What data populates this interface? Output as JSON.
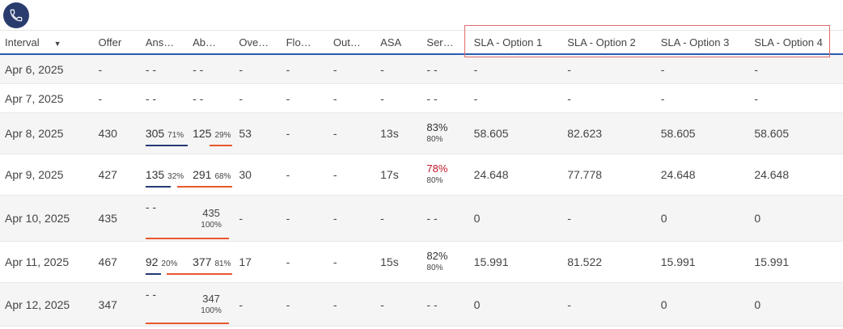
{
  "columns": {
    "interval": "Interval",
    "offer": "Offer",
    "answered": "Ans…",
    "abandoned": "Ab…",
    "over": "Ove…",
    "flow": "Flo…",
    "out": "Out…",
    "asa": "ASA",
    "service": "Ser…",
    "sla1": "SLA - Option 1",
    "sla2": "SLA - Option 2",
    "sla3": "SLA - Option 3",
    "sla4": "SLA - Option 4"
  },
  "sort_indicator": "▼",
  "rows": [
    {
      "interval": "Apr 6, 2025",
      "offer": "-",
      "ans": "- -",
      "ab": "- -",
      "over": "-",
      "flow": "-",
      "out": "-",
      "asa": "-",
      "svc": "- -",
      "sla1": "-",
      "sla2": "-",
      "sla3": "-",
      "sla4": "-"
    },
    {
      "interval": "Apr 7, 2025",
      "offer": "-",
      "ans": "- -",
      "ab": "- -",
      "over": "-",
      "flow": "-",
      "out": "-",
      "asa": "-",
      "svc": "- -",
      "sla1": "-",
      "sla2": "-",
      "sla3": "-",
      "sla4": "-"
    },
    {
      "interval": "Apr 8, 2025",
      "offer": "430",
      "ans": "305",
      "ans_pct": "71%",
      "ans_frac": 0.71,
      "ab": "125",
      "ab_pct": "29%",
      "ab_frac": 0.29,
      "over": "53",
      "flow": "-",
      "out": "-",
      "asa": "13s",
      "svc": "83%",
      "svc_sub": "80%",
      "sla1": "58.605",
      "sla2": "82.623",
      "sla3": "58.605",
      "sla4": "58.605"
    },
    {
      "interval": "Apr 9, 2025",
      "offer": "427",
      "ans": "135",
      "ans_pct": "32%",
      "ans_frac": 0.32,
      "ab": "291",
      "ab_pct": "68%",
      "ab_frac": 0.68,
      "over": "30",
      "flow": "-",
      "out": "-",
      "asa": "17s",
      "svc": "78%",
      "svc_sub": "80%",
      "sla1": "24.648",
      "sla2": "77.778",
      "sla3": "24.648",
      "sla4": "24.648"
    },
    {
      "interval": "Apr 10, 2025",
      "offer": "435",
      "ans": "- -",
      "ab": "435",
      "ab_pct": "100%",
      "ab_frac": 1.0,
      "over": "-",
      "flow": "-",
      "out": "-",
      "asa": "-",
      "svc": "- -",
      "sla1": "0",
      "sla2": "-",
      "sla3": "0",
      "sla4": "0"
    },
    {
      "interval": "Apr 11, 2025",
      "offer": "467",
      "ans": "92",
      "ans_pct": "20%",
      "ans_frac": 0.2,
      "ab": "377",
      "ab_pct": "81%",
      "ab_frac": 0.81,
      "over": "17",
      "flow": "-",
      "out": "-",
      "asa": "15s",
      "svc": "82%",
      "svc_sub": "80%",
      "sla1": "15.991",
      "sla2": "81.522",
      "sla3": "15.991",
      "sla4": "15.991"
    },
    {
      "interval": "Apr 12, 2025",
      "offer": "347",
      "ans": "- -",
      "ab": "347",
      "ab_pct": "100%",
      "ab_frac": 1.0,
      "over": "-",
      "flow": "-",
      "out": "-",
      "asa": "-",
      "svc": "- -",
      "sla1": "0",
      "sla2": "-",
      "sla3": "0",
      "sla4": "0"
    }
  ],
  "colors": {
    "accent": "#2a5db0",
    "answered_bar": "#243a75",
    "abandoned_bar": "#e8572e",
    "below_target": "#c0182b",
    "highlight_box": "#e06a6a"
  },
  "icons": {
    "phone": "phone-icon"
  }
}
